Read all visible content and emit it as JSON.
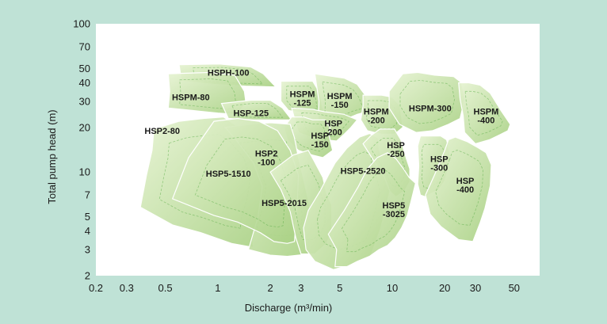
{
  "chart_data": {
    "type": "area",
    "title": "",
    "xlabel": "Discharge (m³/min)",
    "ylabel": "Total pump head (m)",
    "x_scale": "log",
    "y_scale": "log",
    "xlim": [
      0.2,
      70
    ],
    "ylim": [
      2,
      100
    ],
    "x_ticks": [
      0.2,
      0.3,
      0.5,
      1,
      2,
      3,
      5,
      10,
      20,
      30,
      50
    ],
    "x_tick_labels": [
      "0.2",
      "0.3",
      "0.5",
      "1",
      "2",
      "3",
      "5",
      "10",
      "20",
      "30",
      "50"
    ],
    "y_ticks": [
      2,
      3,
      4,
      5,
      7,
      10,
      20,
      30,
      40,
      50,
      70,
      100
    ],
    "y_tick_labels": [
      "2",
      "3",
      "4",
      "5",
      "7",
      "10",
      "20",
      "30",
      "40",
      "50",
      "70",
      "100"
    ],
    "grid": false,
    "colors": {
      "page_background": "#bfe2d6",
      "plot_background": "#ffffff",
      "region_light": "#e6f3d2",
      "region_dark": "#a9d184",
      "region_stroke": "#ffffff",
      "inner_curve": "#5cae4a"
    },
    "series": [
      {
        "name": "HSPH-100",
        "label_lines": [
          "HSPH-100"
        ],
        "label_at": [
          1.15,
          47
        ],
        "polygon": [
          [
            0.6,
            53
          ],
          [
            1.02,
            53.5
          ],
          [
            1.55,
            51
          ],
          [
            1.82,
            46
          ],
          [
            2.15,
            37.5
          ],
          [
            1.45,
            38
          ],
          [
            0.95,
            39
          ],
          [
            0.62,
            41
          ]
        ]
      },
      {
        "name": "HSPM-80",
        "label_lines": [
          "HSPM-80"
        ],
        "label_at": [
          0.7,
          32
        ],
        "polygon": [
          [
            0.52,
            46
          ],
          [
            0.92,
            47
          ],
          [
            1.25,
            45
          ],
          [
            1.42,
            35
          ],
          [
            1.45,
            29
          ],
          [
            1.28,
            24.5
          ],
          [
            1.0,
            25
          ],
          [
            0.72,
            26
          ],
          [
            0.52,
            27
          ],
          [
            0.53,
            35
          ]
        ]
      },
      {
        "name": "HSP-125",
        "label_lines": [
          "HSP-125"
        ],
        "label_at": [
          1.55,
          25
        ],
        "polygon": [
          [
            1.05,
            29
          ],
          [
            1.55,
            30.5
          ],
          [
            2.0,
            30.5
          ],
          [
            2.35,
            27
          ],
          [
            2.65,
            22.5
          ],
          [
            2.1,
            22.5
          ],
          [
            1.6,
            22.5
          ],
          [
            1.15,
            23
          ]
        ]
      },
      {
        "name": "HSP2-80",
        "label_lines": [
          "HSP2-80"
        ],
        "label_at": [
          0.48,
          19
        ],
        "polygon": [
          [
            0.43,
            19.5
          ],
          [
            0.6,
            22
          ],
          [
            0.83,
            23
          ],
          [
            1.08,
            23.5
          ],
          [
            1.32,
            20
          ],
          [
            1.7,
            14
          ],
          [
            1.9,
            9
          ],
          [
            1.8,
            6
          ],
          [
            1.58,
            3.5
          ],
          [
            1.6,
            3.1
          ],
          [
            1.2,
            3.3
          ],
          [
            0.8,
            3.9
          ],
          [
            0.55,
            4.4
          ],
          [
            0.36,
            5.8
          ],
          [
            0.39,
            9.5
          ],
          [
            0.42,
            14
          ]
        ]
      },
      {
        "name": "HSPM-125",
        "label_lines": [
          "HSPM",
          "-125"
        ],
        "label_at": [
          3.05,
          31.5
        ],
        "polygon": [
          [
            2.3,
            41
          ],
          [
            3.5,
            41
          ],
          [
            3.85,
            34
          ],
          [
            4.05,
            25
          ],
          [
            3.1,
            25
          ],
          [
            2.55,
            26
          ],
          [
            2.3,
            30
          ]
        ]
      },
      {
        "name": "HSPM-150",
        "label_lines": [
          "HSPM",
          "-150"
        ],
        "label_at": [
          5.0,
          30.5
        ],
        "polygon": [
          [
            3.6,
            46
          ],
          [
            5.3,
            43
          ],
          [
            6.3,
            39
          ],
          [
            7.0,
            33
          ],
          [
            7.6,
            26
          ],
          [
            6.3,
            24.5
          ],
          [
            5.3,
            22.5
          ],
          [
            4.3,
            21
          ],
          [
            3.75,
            21
          ],
          [
            3.8,
            30
          ]
        ]
      },
      {
        "name": "HSPM-200",
        "label_lines": [
          "HSPM",
          "-200"
        ],
        "label_at": [
          8.1,
          24
        ],
        "polygon": [
          [
            6.8,
            33
          ],
          [
            8.7,
            33
          ],
          [
            10.0,
            32
          ],
          [
            11.1,
            28
          ],
          [
            11.5,
            20
          ],
          [
            10.3,
            18
          ],
          [
            8.7,
            18
          ],
          [
            7.2,
            19
          ],
          [
            6.6,
            22.5
          ],
          [
            6.8,
            28
          ]
        ]
      },
      {
        "name": "HSPM-300",
        "label_lines": [
          "HSPM-300"
        ],
        "label_at": [
          16.5,
          27
        ],
        "polygon": [
          [
            9.6,
            35
          ],
          [
            11.5,
            46
          ],
          [
            14.0,
            47
          ],
          [
            17.5,
            45
          ],
          [
            22.5,
            44
          ],
          [
            25.0,
            40
          ],
          [
            26.0,
            31
          ],
          [
            24.5,
            23
          ],
          [
            21.0,
            21
          ],
          [
            17.0,
            19
          ],
          [
            13.7,
            18.5
          ],
          [
            11.0,
            21
          ],
          [
            9.6,
            27
          ]
        ]
      },
      {
        "name": "HSPM-400",
        "label_lines": [
          "HSPM",
          "-400"
        ],
        "label_at": [
          34.5,
          24
        ],
        "polygon": [
          [
            24.0,
            40
          ],
          [
            27.5,
            40
          ],
          [
            32.0,
            38.5
          ],
          [
            36.5,
            34
          ],
          [
            42.0,
            26
          ],
          [
            47.5,
            21
          ],
          [
            46.0,
            19
          ],
          [
            42.0,
            18
          ],
          [
            36.0,
            16.5
          ],
          [
            30.0,
            15.5
          ],
          [
            26.0,
            18.5
          ],
          [
            25.5,
            24
          ],
          [
            24.5,
            31
          ]
        ]
      },
      {
        "name": "HSP-200",
        "label_lines": [
          "HSP",
          "-200"
        ],
        "label_at": [
          4.6,
          20
        ],
        "polygon": [
          [
            2.65,
            27
          ],
          [
            3.5,
            26.5
          ],
          [
            4.1,
            25.5
          ],
          [
            5.3,
            24.5
          ],
          [
            6.3,
            22.5
          ],
          [
            5.8,
            20
          ],
          [
            5.3,
            18
          ],
          [
            4.8,
            16.2
          ],
          [
            4.1,
            16.5
          ],
          [
            3.5,
            17
          ],
          [
            2.9,
            18.5
          ]
        ]
      },
      {
        "name": "HSP-150",
        "label_lines": [
          "HSP",
          "-150"
        ],
        "label_at": [
          3.85,
          16.5
        ],
        "polygon": [
          [
            2.65,
            23.5
          ],
          [
            3.1,
            23.5
          ],
          [
            3.5,
            22.5
          ],
          [
            4.1,
            22.5
          ],
          [
            4.4,
            20
          ],
          [
            4.35,
            17.5
          ],
          [
            4.55,
            14
          ],
          [
            4.0,
            12.5
          ],
          [
            3.5,
            13
          ],
          [
            2.9,
            14
          ],
          [
            2.5,
            16.5
          ],
          [
            2.4,
            20
          ]
        ]
      },
      {
        "name": "HSP2-100",
        "label_lines": [
          "HSP2",
          "-100"
        ],
        "label_at": [
          1.9,
          12.5
        ],
        "polygon": [
          [
            1.1,
            20
          ],
          [
            1.55,
            21
          ],
          [
            2.0,
            21.5
          ],
          [
            2.6,
            21
          ],
          [
            2.75,
            17
          ],
          [
            2.9,
            12.5
          ],
          [
            3.1,
            9
          ],
          [
            3.3,
            6.5
          ],
          [
            3.5,
            4.3
          ],
          [
            3.35,
            2.8
          ],
          [
            2.5,
            2.7
          ],
          [
            2.0,
            2.75
          ],
          [
            1.5,
            3.0
          ],
          [
            1.7,
            5
          ],
          [
            1.8,
            8
          ],
          [
            1.6,
            11.5
          ],
          [
            1.3,
            16
          ]
        ]
      },
      {
        "name": "HSP5-1510",
        "label_lines": [
          "HSP5-1510"
        ],
        "label_at": [
          1.15,
          9.8
        ],
        "polygon": [
          [
            0.68,
            12.5
          ],
          [
            0.95,
            22
          ],
          [
            1.3,
            23
          ],
          [
            1.72,
            22
          ],
          [
            2.2,
            19
          ],
          [
            2.6,
            14
          ],
          [
            2.9,
            9.5
          ],
          [
            2.85,
            6
          ],
          [
            2.75,
            3.4
          ],
          [
            2.5,
            3.3
          ],
          [
            2.1,
            3.4
          ],
          [
            1.75,
            3.9
          ],
          [
            1.3,
            4.6
          ],
          [
            0.95,
            5.1
          ],
          [
            0.55,
            6.6
          ]
        ]
      },
      {
        "name": "HSP5-2015",
        "label_lines": [
          "HSP5-2015"
        ],
        "label_at": [
          2.4,
          6.2
        ],
        "polygon": [
          [
            2.0,
            10
          ],
          [
            2.7,
            13
          ],
          [
            3.3,
            14
          ],
          [
            3.55,
            12
          ],
          [
            4.0,
            9.2
          ],
          [
            4.2,
            7.2
          ],
          [
            4.5,
            6.0
          ],
          [
            4.5,
            4.0
          ],
          [
            4.2,
            3.3
          ],
          [
            3.6,
            2.8
          ],
          [
            3.0,
            2.8
          ],
          [
            2.8,
            3.6
          ],
          [
            2.6,
            5.4
          ],
          [
            2.3,
            7.6
          ]
        ]
      },
      {
        "name": "HSP5-2520",
        "label_lines": [
          "HSP5-2520"
        ],
        "label_at": [
          6.8,
          10.2
        ],
        "polygon": [
          [
            3.1,
            4.2
          ],
          [
            3.3,
            5.5
          ],
          [
            3.85,
            7.4
          ],
          [
            4.3,
            9.5
          ],
          [
            4.7,
            11.5
          ],
          [
            5.5,
            14.5
          ],
          [
            6.5,
            17.2
          ],
          [
            7.4,
            18.2
          ],
          [
            8.3,
            17
          ],
          [
            8.4,
            14.2
          ],
          [
            8.8,
            11.8
          ],
          [
            9.3,
            9.8
          ],
          [
            9.8,
            7.8
          ],
          [
            9.2,
            5.8
          ],
          [
            8.6,
            4.2
          ],
          [
            8.0,
            3.3
          ],
          [
            7.5,
            2.7
          ],
          [
            6.0,
            2.4
          ],
          [
            4.6,
            2.2
          ],
          [
            3.6,
            2.5
          ],
          [
            3.2,
            3.0
          ]
        ]
      },
      {
        "name": "HSP-250",
        "label_lines": [
          "HSP",
          "-250"
        ],
        "label_at": [
          10.5,
          14.2
        ],
        "polygon": [
          [
            6.8,
            15.5
          ],
          [
            7.5,
            17.5
          ],
          [
            8.5,
            19.5
          ],
          [
            10.3,
            19.5
          ],
          [
            11.2,
            16.5
          ],
          [
            12.0,
            12.5
          ],
          [
            12.6,
            10.5
          ],
          [
            12.6,
            8.6
          ],
          [
            11.8,
            7.5
          ],
          [
            10.5,
            6.8
          ],
          [
            9.7,
            7.4
          ],
          [
            9.0,
            9.3
          ],
          [
            8.0,
            11.5
          ]
        ]
      },
      {
        "name": "HSP-300",
        "label_lines": [
          "HSP",
          "-300"
        ],
        "label_at": [
          18.6,
          11.5
        ],
        "polygon": [
          [
            14.0,
            15
          ],
          [
            14.5,
            17.5
          ],
          [
            16.5,
            17.5
          ],
          [
            19.0,
            17.5
          ],
          [
            20.5,
            16.5
          ],
          [
            21.5,
            13
          ],
          [
            21.0,
            10.7
          ],
          [
            20.0,
            8.7
          ],
          [
            18.5,
            7.6
          ],
          [
            16.5,
            7.1
          ],
          [
            15.5,
            6.8
          ],
          [
            14.5,
            7.0
          ],
          [
            14.0,
            8.3
          ],
          [
            14.2,
            11
          ]
        ]
      },
      {
        "name": "HSP-400",
        "label_lines": [
          "HSP",
          "-400"
        ],
        "label_at": [
          26.2,
          8.2
        ],
        "polygon": [
          [
            20.0,
            14
          ],
          [
            21.0,
            16.5
          ],
          [
            23.0,
            17.2
          ],
          [
            27.0,
            16
          ],
          [
            31.0,
            14.6
          ],
          [
            34.5,
            13.5
          ],
          [
            37.0,
            11.2
          ],
          [
            36.5,
            8.1
          ],
          [
            34.0,
            5.7
          ],
          [
            32.0,
            4.6
          ],
          [
            29.0,
            3.4
          ],
          [
            24.0,
            3.5
          ],
          [
            19.0,
            4.3
          ],
          [
            16.5,
            5.2
          ],
          [
            15.5,
            7
          ],
          [
            17.5,
            9.6
          ]
        ]
      },
      {
        "name": "HSP5-3025",
        "label_lines": [
          "HSP5",
          "-3025"
        ],
        "label_at": [
          10.2,
          5.6
        ],
        "polygon": [
          [
            4.8,
            3.0
          ],
          [
            4.3,
            3.8
          ],
          [
            5.3,
            5.5
          ],
          [
            6.4,
            8.0
          ],
          [
            7.2,
            10.5
          ],
          [
            8.2,
            12.5
          ],
          [
            9.4,
            13.5
          ],
          [
            10.5,
            12.3
          ],
          [
            11.6,
            10.5
          ],
          [
            12.5,
            9.2
          ],
          [
            13.6,
            8.4
          ],
          [
            12.8,
            6.3
          ],
          [
            12.2,
            5.1
          ],
          [
            11.3,
            4.2
          ],
          [
            10.4,
            3.6
          ],
          [
            9.4,
            3.2
          ],
          [
            8.4,
            3.0
          ],
          [
            7.4,
            2.7
          ],
          [
            6.3,
            2.5
          ],
          [
            5.5,
            2.3
          ],
          [
            4.7,
            2.3
          ]
        ]
      }
    ]
  }
}
